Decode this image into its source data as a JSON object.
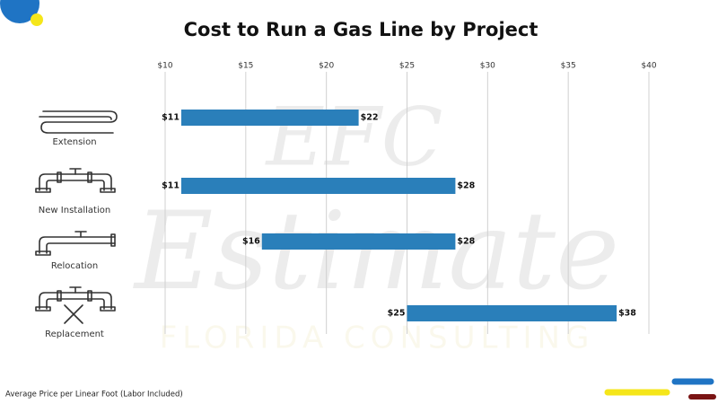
{
  "chart_data": {
    "type": "range-bar",
    "title": "Cost to Run a Gas Line by Project",
    "categories": [
      "Extension",
      "New Installation",
      "Relocation",
      "Replacement"
    ],
    "values": [
      [
        11,
        22
      ],
      [
        11,
        28
      ],
      [
        16,
        28
      ],
      [
        25,
        38
      ]
    ],
    "value_labels": [
      [
        "$11",
        "$22"
      ],
      [
        "$11",
        "$28"
      ],
      [
        "$16",
        "$28"
      ],
      [
        "$25",
        "$38"
      ]
    ],
    "color": "#2a7fba",
    "xlim": [
      10,
      40
    ],
    "xticks": [
      {
        "value": 10,
        "label": "$10"
      },
      {
        "value": 15,
        "label": "$15"
      },
      {
        "value": 20,
        "label": "$20"
      },
      {
        "value": 25,
        "label": "$25"
      },
      {
        "value": 30,
        "label": "$30"
      },
      {
        "value": 35,
        "label": "$35"
      },
      {
        "value": 40,
        "label": "$40"
      }
    ],
    "grid": true,
    "footnote": "Average Price per Linear Foot (Labor Included)",
    "watermark": [
      "EFC",
      "Estimate",
      "FLORIDA CONSULTING"
    ]
  }
}
